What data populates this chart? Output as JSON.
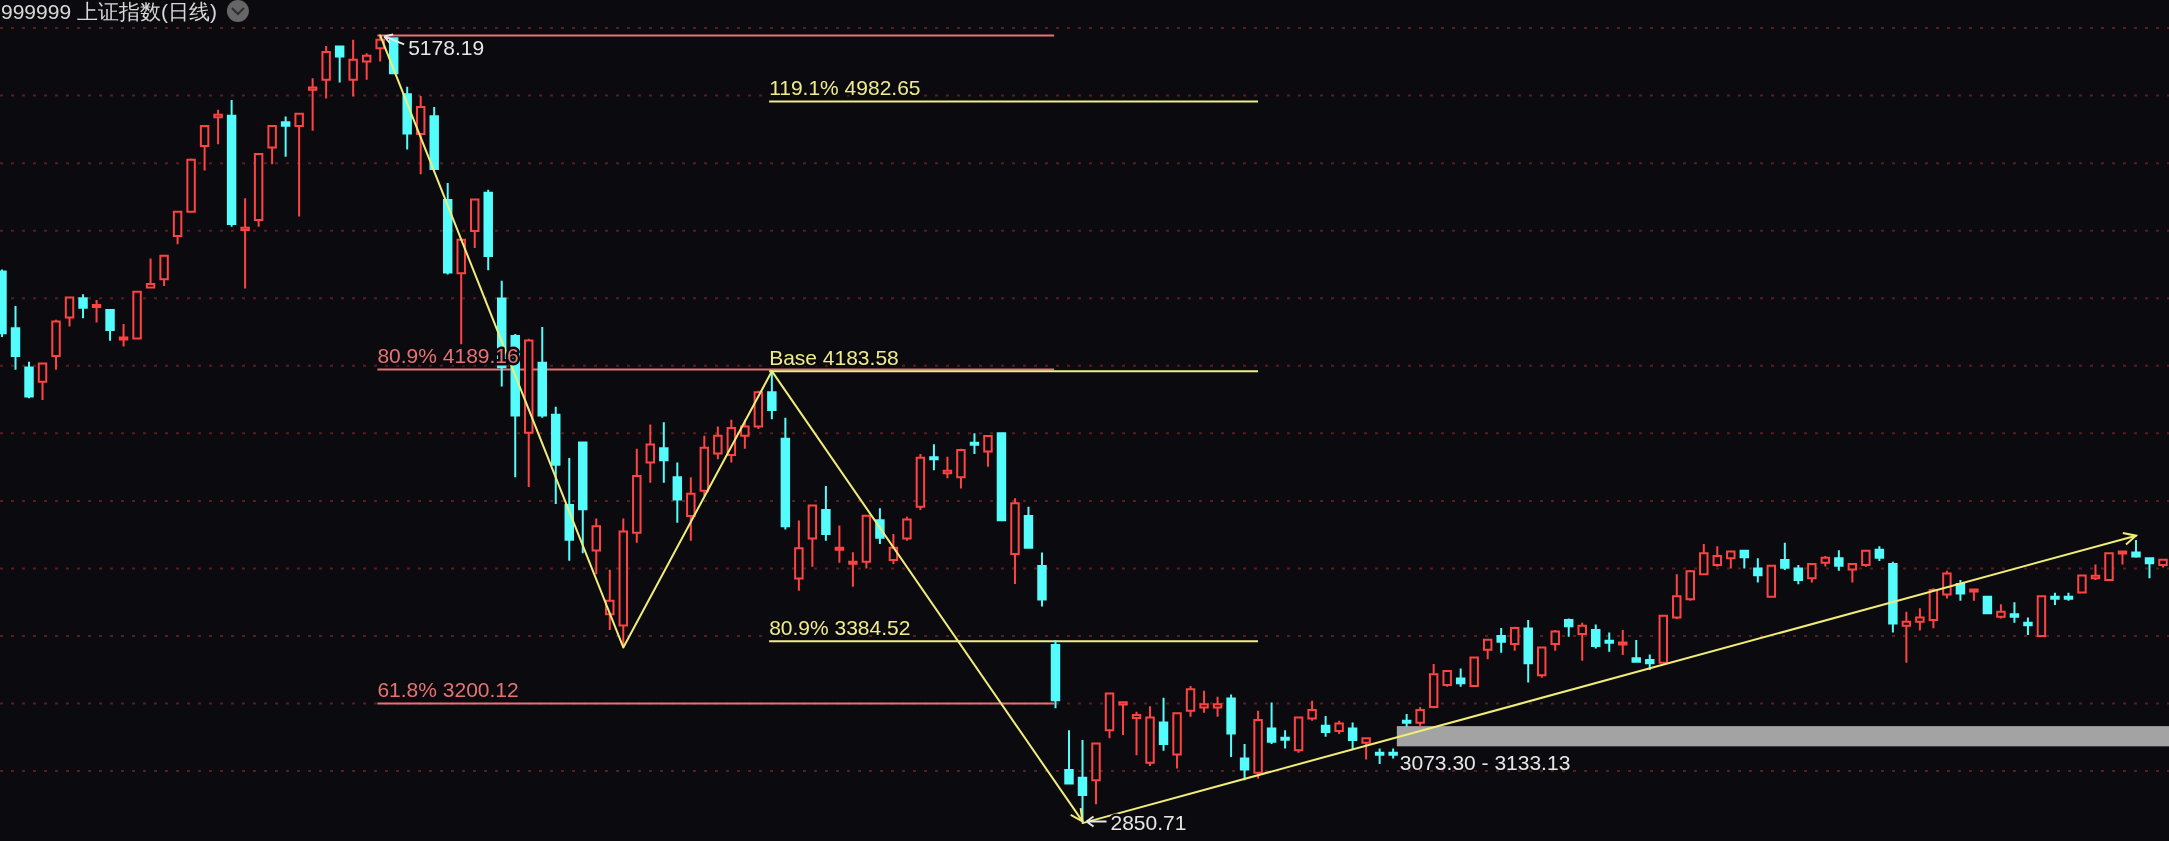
{
  "chart_data": {
    "type": "candlestick",
    "title": "999999 上证指数(日线)",
    "categories": [
      null,
      null,
      null,
      null,
      null,
      null,
      null,
      null,
      null,
      null,
      null,
      null,
      null,
      null,
      null,
      null,
      null,
      null,
      null,
      null,
      null,
      null,
      null,
      null,
      null,
      null,
      null,
      null,
      null,
      null,
      null,
      null,
      null,
      null,
      null,
      null,
      null,
      null,
      null,
      null,
      null,
      null,
      null,
      null,
      null,
      null,
      null,
      null,
      null,
      null,
      null,
      null,
      null,
      null,
      null,
      null,
      null,
      null,
      null,
      null,
      null,
      null,
      null,
      null,
      null,
      null,
      null,
      null,
      null,
      null,
      null,
      null,
      null,
      null,
      null,
      null,
      null,
      null,
      null,
      null,
      null,
      null,
      null,
      null,
      null,
      null,
      null,
      null,
      null,
      null,
      null,
      null,
      null,
      null,
      null,
      null,
      null,
      null,
      null,
      null,
      null,
      null,
      null,
      null,
      null,
      null,
      null,
      null,
      null,
      null,
      null,
      null,
      null,
      null,
      null,
      null,
      null,
      null,
      null,
      null,
      null,
      null,
      null,
      null,
      null,
      null,
      null,
      null,
      null,
      null,
      null,
      null,
      null,
      null,
      null,
      null,
      null,
      null,
      null,
      null,
      null,
      null,
      null,
      null,
      null,
      null,
      null,
      null,
      null,
      null,
      null,
      null,
      null,
      null,
      null,
      null,
      null,
      null,
      null,
      null,
      null
    ],
    "ohlc": [
      [
        4479,
        4485,
        4285,
        4296
      ],
      [
        4311,
        4377,
        4188,
        4229
      ],
      [
        4195,
        4212,
        4104,
        4109
      ],
      [
        4153,
        4207,
        4099,
        4207
      ],
      [
        4229,
        4336,
        4188,
        4331
      ],
      [
        4343,
        4403,
        4316,
        4402
      ],
      [
        4400,
        4412,
        4341,
        4372
      ],
      [
        4375,
        4395,
        4328,
        4380
      ],
      [
        4365,
        4366,
        4274,
        4306
      ],
      [
        4278,
        4324,
        4257,
        4284
      ],
      [
        4281,
        4419,
        4281,
        4419
      ],
      [
        4432,
        4518,
        4432,
        4442
      ],
      [
        4456,
        4528,
        4436,
        4526
      ],
      [
        4584,
        4657,
        4560,
        4656
      ],
      [
        4656,
        4814,
        4655,
        4810
      ],
      [
        4851,
        4912,
        4778,
        4910
      ],
      [
        4936,
        4958,
        4856,
        4943
      ],
      [
        4940,
        4987,
        4612,
        4620
      ],
      [
        4602,
        4696,
        4429,
        4609
      ],
      [
        4632,
        4829,
        4612,
        4827
      ],
      [
        4846,
        4912,
        4797,
        4910
      ],
      [
        4921,
        4938,
        4819,
        4911
      ],
      [
        4910,
        4947,
        4642,
        4946
      ],
      [
        5017,
        5051,
        4896,
        5024
      ],
      [
        5047,
        5147,
        4991,
        5129
      ],
      [
        5145,
        5147,
        5039,
        5116
      ],
      [
        5047,
        5165,
        4997,
        5106
      ],
      [
        5101,
        5125,
        5047,
        5118
      ],
      [
        5140,
        5178.19,
        5101,
        5165
      ],
      [
        5170,
        5172,
        5066,
        5066
      ],
      [
        5004,
        5026,
        4840,
        4888
      ],
      [
        4886,
        4999,
        4767,
        4966
      ],
      [
        4939,
        4966,
        4780,
        4783
      ],
      [
        4691,
        4741,
        4470,
        4476
      ],
      [
        4474,
        4573,
        4264,
        4573
      ],
      [
        4599,
        4695,
        4549,
        4692
      ],
      [
        4712,
        4721,
        4483,
        4525
      ],
      [
        4399,
        4452,
        4139,
        4196
      ],
      [
        4288,
        4294,
        3870,
        4053
      ],
      [
        4002,
        4280,
        3841,
        4275
      ],
      [
        4209,
        4315,
        4046,
        4053
      ],
      [
        4055,
        4079,
        3791,
        3907
      ],
      [
        3788,
        3927,
        3623,
        3685
      ],
      [
        3973,
        3976,
        3645,
        3775
      ],
      [
        3653,
        3748,
        3583,
        3725
      ],
      [
        3464,
        3596,
        3418,
        3504
      ],
      [
        3431,
        3748,
        3366,
        3709
      ],
      [
        3706,
        3954,
        3676,
        3874
      ],
      [
        3914,
        4026,
        3854,
        3967
      ],
      [
        3956,
        4033,
        3854,
        3920
      ],
      [
        3870,
        3914,
        3735,
        3804
      ],
      [
        3755,
        3870,
        3682,
        3821
      ],
      [
        3830,
        3993,
        3815,
        3957
      ],
      [
        3940,
        4020,
        3923,
        3993
      ],
      [
        3936,
        4040,
        3914,
        4016
      ],
      [
        3993,
        4040,
        3954,
        4020
      ],
      [
        4020,
        4126,
        4013,
        4122
      ],
      [
        4122,
        4183.58,
        4042,
        4069
      ],
      [
        3984,
        4046,
        3715,
        3725
      ],
      [
        3570,
        3742,
        3534,
        3660
      ],
      [
        3689,
        3789,
        3605,
        3786
      ],
      [
        3773,
        3844,
        3682,
        3702
      ],
      [
        3655,
        3727,
        3617,
        3661
      ],
      [
        3614,
        3648,
        3546,
        3620
      ],
      [
        3620,
        3759,
        3600,
        3756
      ],
      [
        3743,
        3778,
        3672,
        3691
      ],
      [
        3625,
        3702,
        3613,
        3661
      ],
      [
        3689,
        3753,
        3682,
        3745
      ],
      [
        3783,
        3939,
        3773,
        3928
      ],
      [
        3929,
        3968,
        3891,
        3923
      ],
      [
        3882,
        3931,
        3867,
        3889
      ],
      [
        3870,
        3954,
        3837,
        3951
      ],
      [
        3972,
        4000,
        3939,
        3967
      ],
      [
        3946,
        3995,
        3901,
        3992
      ],
      [
        4000,
        4003,
        3741,
        3743
      ],
      [
        3643,
        3808,
        3554,
        3793
      ],
      [
        3755,
        3783,
        3659,
        3661
      ],
      [
        3607,
        3647,
        3487,
        3508
      ],
      [
        3373,
        3388,
        3186,
        3210
      ],
      [
        3003,
        3121,
        2961,
        2963
      ],
      [
        2980,
        3092,
        2850.71,
        2929
      ],
      [
        2973,
        3084,
        2902,
        3082
      ],
      [
        3121,
        3233,
        3097,
        3230
      ],
      [
        3197,
        3205,
        3107,
        3204
      ],
      [
        3157,
        3176,
        3047,
        3166
      ],
      [
        3025,
        3192,
        3015,
        3159
      ],
      [
        3144,
        3217,
        3060,
        3080
      ],
      [
        3049,
        3174,
        3008,
        3171
      ],
      [
        3179,
        3252,
        3161,
        3242
      ],
      [
        3188,
        3238,
        3173,
        3198
      ],
      [
        3188,
        3220,
        3161,
        3198
      ],
      [
        3215,
        3227,
        3042,
        3111
      ],
      [
        3037,
        3080,
        2973,
        3005
      ],
      [
        2995,
        3179,
        2978,
        3151
      ],
      [
        3126,
        3203,
        3080,
        3087
      ],
      [
        3099,
        3121,
        3067,
        3095
      ],
      [
        3062,
        3161,
        3054,
        3159
      ],
      [
        3156,
        3208,
        3149,
        3181
      ],
      [
        3134,
        3163,
        3102,
        3116
      ],
      [
        3119,
        3149,
        3110,
        3141
      ],
      [
        3126,
        3144,
        3064,
        3092
      ],
      [
        3084,
        3099,
        3034,
        3097
      ],
      [
        3054,
        3067,
        3021,
        3049
      ],
      [
        3054,
        3067,
        3037,
        3050
      ],
      [
        3149,
        3169,
        3131,
        3144
      ],
      [
        3143,
        3190,
        3131,
        3181
      ],
      [
        3190,
        3317,
        3186,
        3287
      ],
      [
        3255,
        3299,
        3250,
        3296
      ],
      [
        3274,
        3304,
        3250,
        3260
      ],
      [
        3252,
        3337,
        3250,
        3336
      ],
      [
        3359,
        3391,
        3331,
        3389
      ],
      [
        3400,
        3424,
        3350,
        3383
      ],
      [
        3376,
        3427,
        3356,
        3424
      ],
      [
        3422,
        3447,
        3262,
        3319
      ],
      [
        3284,
        3368,
        3276,
        3366
      ],
      [
        3376,
        3418,
        3356,
        3413
      ],
      [
        3447,
        3452,
        3398,
        3429
      ],
      [
        3406,
        3439,
        3327,
        3430
      ],
      [
        3418,
        3434,
        3363,
        3370
      ],
      [
        3386,
        3410,
        3353,
        3381
      ],
      [
        3375,
        3418,
        3344,
        3381
      ],
      [
        3334,
        3388,
        3322,
        3324
      ],
      [
        3329,
        3345,
        3299,
        3319
      ],
      [
        3321,
        3461,
        3319,
        3460
      ],
      [
        3455,
        3583,
        3450,
        3518
      ],
      [
        3509,
        3595,
        3504,
        3592
      ],
      [
        3583,
        3672,
        3582,
        3645
      ],
      [
        3610,
        3666,
        3605,
        3637
      ],
      [
        3630,
        3652,
        3600,
        3650
      ],
      [
        3652,
        3654,
        3600,
        3633
      ],
      [
        3600,
        3630,
        3558,
        3580
      ],
      [
        3516,
        3610,
        3515,
        3608
      ],
      [
        3625,
        3676,
        3595,
        3602
      ],
      [
        3600,
        3610,
        3553,
        3566
      ],
      [
        3571,
        3615,
        3558,
        3613
      ],
      [
        3617,
        3637,
        3606,
        3632
      ],
      [
        3630,
        3654,
        3593,
        3608
      ],
      [
        3597,
        3614,
        3558,
        3613
      ],
      [
        3610,
        3654,
        3605,
        3652
      ],
      [
        3655,
        3666,
        3622,
        3632
      ],
      [
        3613,
        3620,
        3410,
        3437
      ],
      [
        3430,
        3472,
        3321,
        3442
      ],
      [
        3442,
        3482,
        3416,
        3455
      ],
      [
        3447,
        3541,
        3423,
        3536
      ],
      [
        3523,
        3593,
        3511,
        3585
      ],
      [
        3554,
        3566,
        3504,
        3526
      ],
      [
        3533,
        3539,
        3504,
        3538
      ],
      [
        3516,
        3518,
        3464,
        3467
      ],
      [
        3457,
        3494,
        3452,
        3472
      ],
      [
        3464,
        3500,
        3439,
        3457
      ],
      [
        3439,
        3455,
        3403,
        3432
      ],
      [
        3400,
        3520,
        3398,
        3518
      ],
      [
        3516,
        3528,
        3492,
        3511
      ],
      [
        3516,
        3528,
        3504,
        3513
      ],
      [
        3529,
        3582,
        3526,
        3579
      ],
      [
        3571,
        3612,
        3566,
        3578
      ],
      [
        3566,
        3647,
        3564,
        3645
      ],
      [
        3645,
        3651,
        3612,
        3650
      ],
      [
        3647,
        3684,
        3632,
        3635
      ],
      [
        3630,
        3633,
        3571,
        3615
      ],
      [
        3610,
        3628,
        3603,
        3626
      ]
    ],
    "colors": [
      "#54fcfc",
      "#54fcfc",
      "#54fcfc",
      "#ff4343",
      "#ff4343",
      "#ff4343",
      "#54fcfc",
      "#ff4343",
      "#54fcfc",
      "#ff4343",
      "#ff4343",
      "#ff4343",
      "#ff4343",
      "#ff4343",
      "#ff4343",
      "#ff4343",
      "#ff4343",
      "#54fcfc",
      "#ff4343",
      "#ff4343",
      "#ff4343",
      "#54fcfc",
      "#ff4343",
      "#ff4343",
      "#ff4343",
      "#54fcfc",
      "#ff4343",
      "#ff4343",
      "#ff4343",
      "#54fcfc",
      "#54fcfc",
      "#ff4343",
      "#54fcfc",
      "#54fcfc",
      "#ff4343",
      "#ff4343",
      "#54fcfc",
      "#54fcfc",
      "#54fcfc",
      "#ff4343",
      "#54fcfc",
      "#54fcfc",
      "#54fcfc",
      "#54fcfc",
      "#ff4343",
      "#ff4343",
      "#ff4343",
      "#ff4343",
      "#ff4343",
      "#54fcfc",
      "#54fcfc",
      "#ff4343",
      "#ff4343",
      "#ff4343",
      "#ff4343",
      "#ff4343",
      "#ff4343",
      "#54fcfc",
      "#54fcfc",
      "#ff4343",
      "#ff4343",
      "#54fcfc",
      "#ff4343",
      "#ff4343",
      "#ff4343",
      "#54fcfc",
      "#ff4343",
      "#ff4343",
      "#ff4343",
      "#54fcfc",
      "#ff4343",
      "#ff4343",
      "#54fcfc",
      "#ff4343",
      "#54fcfc",
      "#ff4343",
      "#54fcfc",
      "#54fcfc",
      "#54fcfc",
      "#54fcfc",
      "#54fcfc",
      "#ff4343",
      "#ff4343",
      "#ff4343",
      "#ff4343",
      "#ff4343",
      "#54fcfc",
      "#ff4343",
      "#ff4343",
      "#ff4343",
      "#ff4343",
      "#54fcfc",
      "#54fcfc",
      "#ff4343",
      "#54fcfc",
      "#54fcfc",
      "#ff4343",
      "#ff4343",
      "#54fcfc",
      "#ff4343",
      "#54fcfc",
      "#ff4343",
      "#54fcfc",
      "#54fcfc",
      "#54fcfc",
      "#ff4343",
      "#ff4343",
      "#ff4343",
      "#54fcfc",
      "#ff4343",
      "#ff4343",
      "#54fcfc",
      "#ff4343",
      "#54fcfc",
      "#ff4343",
      "#ff4343",
      "#54fcfc",
      "#ff4343",
      "#54fcfc",
      "#54fcfc",
      "#ff4343",
      "#54fcfc",
      "#54fcfc",
      "#ff4343",
      "#ff4343",
      "#ff4343",
      "#ff4343",
      "#ff4343",
      "#ff4343",
      "#54fcfc",
      "#54fcfc",
      "#ff4343",
      "#54fcfc",
      "#54fcfc",
      "#ff4343",
      "#ff4343",
      "#54fcfc",
      "#ff4343",
      "#ff4343",
      "#54fcfc",
      "#54fcfc",
      "#ff4343",
      "#ff4343",
      "#ff4343",
      "#ff4343",
      "#54fcfc",
      "#ff4343",
      "#54fcfc",
      "#ff4343",
      "#54fcfc",
      "#54fcfc",
      "#ff4343",
      "#54fcfc",
      "#54fcfc",
      "#ff4343",
      "#ff4343",
      "#ff4343",
      "#ff4343",
      "#54fcfc",
      "#54fcfc",
      "#ff4343"
    ],
    "series": [
      {
        "type": "line",
        "color": "#f0ec7a",
        "values": [
          null,
          null,
          null,
          null,
          null,
          null,
          null,
          null,
          null,
          null,
          null,
          null,
          null,
          null,
          null,
          null,
          null,
          null,
          null,
          null,
          null,
          null,
          null,
          null,
          null,
          null,
          null,
          null,
          5178,
          null,
          null,
          null,
          null,
          null,
          null,
          null,
          null,
          null,
          null,
          null,
          null,
          null,
          null,
          null,
          null,
          null,
          3366,
          null,
          null,
          null,
          null,
          null,
          null,
          null,
          null,
          null,
          null,
          4184,
          null,
          null,
          null,
          null,
          null,
          null,
          null,
          null,
          null,
          null,
          null,
          null,
          null,
          null,
          null,
          null,
          null,
          null,
          null,
          null,
          null,
          null,
          2851,
          null,
          null,
          null,
          null,
          null,
          null,
          null,
          null,
          null,
          null,
          null,
          null,
          null,
          null,
          null,
          null,
          null,
          null,
          null,
          null,
          null,
          null,
          null,
          null,
          null,
          null,
          null,
          null,
          null,
          null,
          null,
          null,
          null,
          null,
          null,
          null,
          null,
          null,
          null,
          null,
          null,
          null,
          null,
          null,
          null,
          null,
          null,
          null,
          null,
          null,
          null,
          null,
          null,
          null,
          null,
          null,
          null,
          null,
          null,
          null,
          null,
          null,
          null,
          null,
          null,
          null,
          null,
          null,
          null,
          null,
          null,
          null,
          null,
          null,
          null,
          null,
          null,
          null,
          null,
          null
        ]
      },
      {
        "type": "line",
        "color": "#f0ec7a",
        "values": [
          null,
          null,
          null,
          null,
          null,
          null,
          null,
          null,
          null,
          null,
          null,
          null,
          null,
          null,
          null,
          null,
          null,
          null,
          null,
          null,
          null,
          null,
          null,
          null,
          null,
          null,
          null,
          null,
          null,
          null,
          null,
          null,
          null,
          null,
          null,
          null,
          null,
          null,
          null,
          null,
          null,
          null,
          null,
          null,
          null,
          null,
          null,
          null,
          null,
          null,
          null,
          null,
          null,
          null,
          null,
          null,
          null,
          null,
          null,
          null,
          null,
          null,
          null,
          null,
          null,
          null,
          null,
          null,
          null,
          null,
          null,
          null,
          null,
          null,
          null,
          null,
          null,
          null,
          null,
          null,
          2846,
          null,
          null,
          null,
          null,
          null,
          null,
          null,
          null,
          null,
          null,
          null,
          null,
          null,
          null,
          null,
          null,
          null,
          null,
          null,
          null,
          null,
          null,
          null,
          null,
          null,
          null,
          null,
          null,
          null,
          null,
          null,
          null,
          null,
          null,
          null,
          null,
          null,
          null,
          null,
          null,
          null,
          null,
          null,
          null,
          null,
          null,
          null,
          null,
          null,
          null,
          null,
          null,
          null,
          null,
          null,
          null,
          null,
          null,
          null,
          null,
          null,
          null,
          null,
          null,
          null,
          null,
          null,
          null,
          null,
          null,
          null,
          null,
          null,
          null,
          null,
          null,
          null,
          3697,
          null,
          null
        ]
      }
    ],
    "ylim": [
      2793,
      5283
    ],
    "yticks": [
      {
        "value": 3000,
        "label": null
      },
      {
        "value": 3200,
        "label": null
      },
      {
        "value": 3400,
        "label": null
      },
      {
        "value": 3600,
        "label": null
      },
      {
        "value": 3800,
        "label": null
      },
      {
        "value": 4000,
        "label": null
      },
      {
        "value": 4200,
        "label": null
      },
      {
        "value": 4400,
        "label": null
      },
      {
        "value": 4600,
        "label": null
      },
      {
        "value": 4800,
        "label": null
      },
      {
        "value": 5000,
        "label": null
      },
      {
        "value": 5200,
        "label": null
      }
    ],
    "grid": "y",
    "tick_labels": false,
    "ref_lines": [
      {
        "axis": "y",
        "value": 5178.19,
        "color": "#e57373"
      },
      {
        "axis": "y",
        "value": 4982.65,
        "label": "119.1% 4982.65",
        "color": "#f0ec8a"
      },
      {
        "axis": "y",
        "value": 4189.16,
        "label": "80.9% 4189.16",
        "color": "#e57373"
      },
      {
        "axis": "y",
        "value": 4183.58,
        "label": "Base 4183.58",
        "color": "#f0ec8a"
      },
      {
        "axis": "y",
        "value": 3384.52,
        "label": "80.9% 3384.52",
        "color": "#f0ec8a"
      },
      {
        "axis": "y",
        "value": 3200.12,
        "label": "61.8% 3200.12",
        "color": "#e57373"
      }
    ],
    "bands": [
      {
        "axis": "y",
        "from": 3073.3,
        "to": 3133.13,
        "label": "3073.30 - 3133.13",
        "color": "#a3a3a3"
      }
    ],
    "annotations": [
      {
        "text": "5178.19",
        "y": 5178.19
      },
      "2850.71"
    ]
  }
}
